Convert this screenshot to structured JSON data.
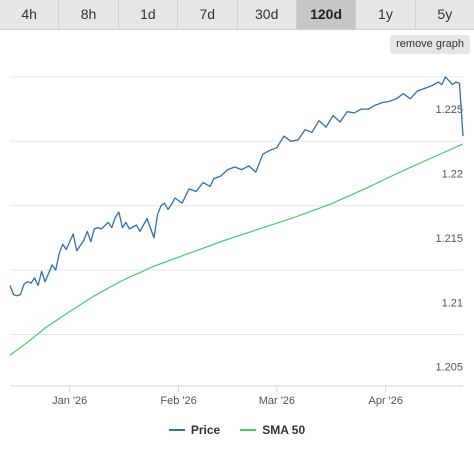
{
  "tabs": [
    {
      "label": "4h",
      "active": false
    },
    {
      "label": "8h",
      "active": false
    },
    {
      "label": "1d",
      "active": false
    },
    {
      "label": "7d",
      "active": false
    },
    {
      "label": "30d",
      "active": false
    },
    {
      "label": "120d",
      "active": true
    },
    {
      "label": "1y",
      "active": false
    },
    {
      "label": "5y",
      "active": false
    }
  ],
  "remove_button": "remove graph",
  "chart_data": {
    "type": "line",
    "x_ticks": [
      "Jan '26",
      "Feb '26",
      "Mar '26",
      "Apr '26"
    ],
    "x_tick_dates": [
      "2026-01-01",
      "2026-02-01",
      "2026-03-01",
      "2026-04-01"
    ],
    "x_range": [
      "2025-12-15",
      "2026-04-23"
    ],
    "y_ticks": [
      "1.205",
      "1.21",
      "1.215",
      "1.22",
      "1.225"
    ],
    "ylim": [
      1.2035,
      1.2285
    ],
    "grid": true,
    "legend_position": "bottom",
    "series": [
      {
        "name": "Price",
        "color": "#2b72b0",
        "x": [
          "2025-12-15",
          "2025-12-16",
          "2025-12-17",
          "2025-12-18",
          "2025-12-19",
          "2025-12-20",
          "2025-12-21",
          "2025-12-22",
          "2025-12-23",
          "2025-12-24",
          "2025-12-25",
          "2025-12-27",
          "2025-12-28",
          "2025-12-29",
          "2025-12-30",
          "2025-12-31",
          "2026-01-02",
          "2026-01-03",
          "2026-01-05",
          "2026-01-06",
          "2026-01-07",
          "2026-01-08",
          "2026-01-09",
          "2026-01-10",
          "2026-01-12",
          "2026-01-13",
          "2026-01-14",
          "2026-01-15",
          "2026-01-16",
          "2026-01-17",
          "2026-01-18",
          "2026-01-20",
          "2026-01-21",
          "2026-01-23",
          "2026-01-25",
          "2026-01-26",
          "2026-01-27",
          "2026-01-28",
          "2026-01-29",
          "2026-01-30",
          "2026-01-31",
          "2026-02-02",
          "2026-02-04",
          "2026-02-06",
          "2026-02-08",
          "2026-02-10",
          "2026-02-11",
          "2026-02-13",
          "2026-02-15",
          "2026-02-17",
          "2026-02-19",
          "2026-02-21",
          "2026-02-23",
          "2026-02-25",
          "2026-02-27",
          "2026-03-01",
          "2026-03-03",
          "2026-03-05",
          "2026-03-07",
          "2026-03-09",
          "2026-03-11",
          "2026-03-13",
          "2026-03-15",
          "2026-03-17",
          "2026-03-19",
          "2026-03-21",
          "2026-03-23",
          "2026-03-25",
          "2026-03-27",
          "2026-03-29",
          "2026-03-31",
          "2026-04-02",
          "2026-04-04",
          "2026-04-06",
          "2026-04-08",
          "2026-04-10",
          "2026-04-12",
          "2026-04-14",
          "2026-04-16",
          "2026-04-17",
          "2026-04-18",
          "2026-04-19",
          "2026-04-20",
          "2026-04-21",
          "2026-04-22",
          "2026-04-23"
        ],
        "y": [
          1.2113,
          1.2106,
          1.2105,
          1.2106,
          1.2114,
          1.2116,
          1.2115,
          1.2119,
          1.2113,
          1.2124,
          1.2116,
          1.2129,
          1.2125,
          1.2138,
          1.2145,
          1.2141,
          1.2153,
          1.214,
          1.2148,
          1.2155,
          1.2147,
          1.2157,
          1.2158,
          1.2157,
          1.2162,
          1.2158,
          1.2166,
          1.217,
          1.2158,
          1.2162,
          1.2157,
          1.216,
          1.2155,
          1.2165,
          1.215,
          1.2168,
          1.2175,
          1.2177,
          1.2172,
          1.2176,
          1.2181,
          1.2177,
          1.2188,
          1.2186,
          1.2193,
          1.219,
          1.2196,
          1.2198,
          1.2203,
          1.2205,
          1.2203,
          1.2206,
          1.2201,
          1.2215,
          1.2218,
          1.222,
          1.2229,
          1.2225,
          1.2226,
          1.2234,
          1.2232,
          1.2241,
          1.2236,
          1.2245,
          1.224,
          1.2248,
          1.2247,
          1.225,
          1.225,
          1.2253,
          1.2255,
          1.2256,
          1.2258,
          1.2262,
          1.2258,
          1.2264,
          1.2266,
          1.2268,
          1.2271,
          1.2269,
          1.2275,
          1.2272,
          1.2269,
          1.2271,
          1.227,
          1.2229
        ]
      },
      {
        "name": "SMA 50",
        "color": "#3ecf6b",
        "x": [
          "2025-12-15",
          "2025-12-20",
          "2025-12-25",
          "2025-12-31",
          "2026-01-08",
          "2026-01-16",
          "2026-01-25",
          "2026-02-04",
          "2026-02-14",
          "2026-02-24",
          "2026-03-06",
          "2026-03-16",
          "2026-03-26",
          "2026-04-05",
          "2026-04-14",
          "2026-04-23"
        ],
        "y": [
          1.2059,
          1.2069,
          1.208,
          1.2091,
          1.2105,
          1.2117,
          1.2128,
          1.2138,
          1.2148,
          1.2157,
          1.2166,
          1.2176,
          1.2188,
          1.2201,
          1.2212,
          1.2223
        ]
      }
    ]
  }
}
